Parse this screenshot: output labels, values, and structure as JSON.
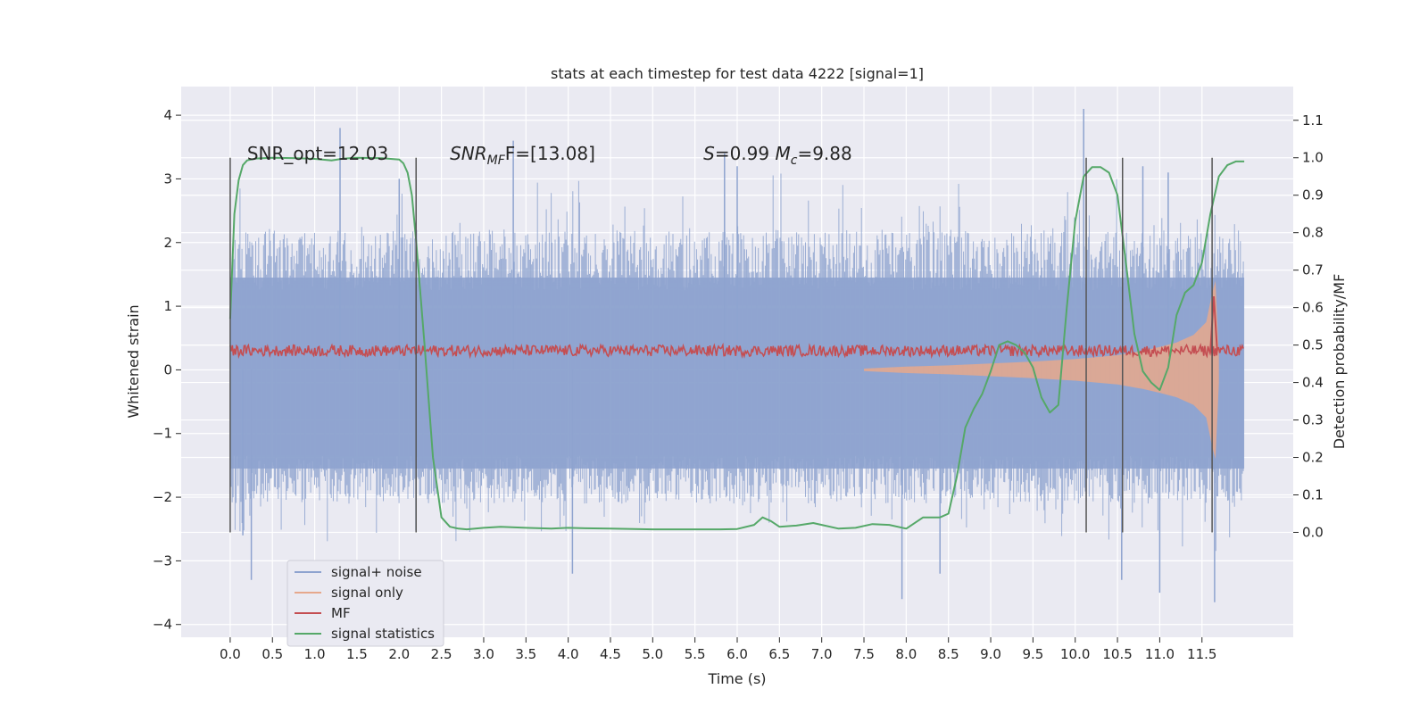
{
  "chart_data": {
    "type": "line",
    "title": "stats at each timestep for test data 4222 [signal=1]",
    "xlabel": "Time (s)",
    "ylabel": "Whitened strain",
    "ylabel_right": "Detection probability/MF",
    "xlim": [
      -0.58,
      12.58
    ],
    "ylim": [
      -4.2,
      4.45
    ],
    "ylim_right": [
      -0.28,
      1.19
    ],
    "x_ticks": [
      0.0,
      0.5,
      1.0,
      1.5,
      2.0,
      2.5,
      3.0,
      3.5,
      4.0,
      4.5,
      5.0,
      5.5,
      6.0,
      6.5,
      7.0,
      7.5,
      8.0,
      8.5,
      9.0,
      9.5,
      10.0,
      10.5,
      11.0,
      11.5
    ],
    "x_tick_labels": [
      "0.0",
      "0.5",
      "1.0",
      "1.5",
      "2.0",
      "2.5",
      "3.0",
      "3.5",
      "4.0",
      "4.5",
      "5.0",
      "5.5",
      "6.0",
      "6.5",
      "7.0",
      "7.5",
      "8.0",
      "8.5",
      "9.0",
      "9.5",
      "10.0",
      "10.5",
      "11.0",
      "11.5"
    ],
    "y_ticks": [
      -4,
      -3,
      -2,
      -1,
      0,
      1,
      2,
      3,
      4
    ],
    "y_tick_labels": [
      "−4",
      "−3",
      "−2",
      "−1",
      "0",
      "1",
      "2",
      "3",
      "4"
    ],
    "y_ticks_right": [
      0.0,
      0.1,
      0.2,
      0.3,
      0.4,
      0.5,
      0.6,
      0.7,
      0.8,
      0.9,
      1.0,
      1.1
    ],
    "y_tick_labels_right": [
      "0.0",
      "0.1",
      "0.2",
      "0.3",
      "0.4",
      "0.5",
      "0.6",
      "0.7",
      "0.8",
      "0.9",
      "1.0",
      "1.1"
    ],
    "grid": true,
    "legend_position": "lower-left",
    "annotations": [
      {
        "id": "snr-opt",
        "text": "SNR_opt=12.03",
        "x": 0.2,
        "y": 3.3
      },
      {
        "id": "snr-mf",
        "text": "SNR",
        "sub": "MF",
        "suffix": "F=[13.08]",
        "x": 2.6,
        "y": 3.3
      },
      {
        "id": "stats",
        "text": "S",
        "suffix": "=0.99",
        "text2": "M",
        "sub2": "c",
        "suffix2": "=9.88",
        "x": 5.6,
        "y": 3.3
      }
    ],
    "vlines": [
      0.0,
      2.2,
      10.13,
      10.56,
      11.62
    ],
    "vline_range": [
      -0.0,
      1.0
    ],
    "series": [
      {
        "name": "signal+ noise",
        "color": "#8ea3cf",
        "axis": "left",
        "x_range": [
          0.0,
          12.0
        ],
        "band_min": -2.1,
        "band_max": 2.2,
        "extreme_spikes": [
          [
            0.15,
            -2.6
          ],
          [
            0.25,
            -3.3
          ],
          [
            1.3,
            3.8
          ],
          [
            4.05,
            -3.2
          ],
          [
            6.0,
            3.2
          ],
          [
            7.95,
            -3.6
          ],
          [
            8.4,
            -3.2
          ],
          [
            10.1,
            4.1
          ],
          [
            10.55,
            -3.3
          ],
          [
            11.0,
            -3.5
          ],
          [
            11.65,
            -3.65
          ],
          [
            11.1,
            3.1
          ],
          [
            2.0,
            3.0
          ],
          [
            3.35,
            3.6
          ],
          [
            5.85,
            3.4
          ],
          [
            10.8,
            3.2
          ]
        ]
      },
      {
        "name": "signal only",
        "color": "#e6a88c",
        "axis": "left",
        "envelope": [
          [
            7.5,
            0.02
          ],
          [
            8.0,
            0.05
          ],
          [
            8.5,
            0.07
          ],
          [
            9.0,
            0.1
          ],
          [
            9.5,
            0.13
          ],
          [
            10.0,
            0.17
          ],
          [
            10.5,
            0.23
          ],
          [
            10.8,
            0.3
          ],
          [
            11.0,
            0.36
          ],
          [
            11.2,
            0.43
          ],
          [
            11.4,
            0.55
          ],
          [
            11.55,
            0.75
          ],
          [
            11.62,
            1.2
          ],
          [
            11.66,
            1.4
          ],
          [
            11.7,
            0.2
          ]
        ]
      },
      {
        "name": "MF",
        "color": "#c44e52",
        "axis": "right",
        "x_range": [
          0.0,
          12.0
        ],
        "base": 0.485,
        "spread": 0.015,
        "peak": [
          11.64,
          0.63
        ]
      },
      {
        "name": "signal statistics",
        "color": "#55a868",
        "axis": "right",
        "x": [
          0.0,
          0.05,
          0.1,
          0.15,
          0.2,
          0.3,
          0.5,
          0.8,
          1.0,
          1.2,
          1.35,
          1.5,
          1.8,
          2.0,
          2.05,
          2.1,
          2.15,
          2.2,
          2.3,
          2.4,
          2.5,
          2.6,
          2.7,
          2.8,
          3.0,
          3.2,
          3.5,
          3.8,
          4.0,
          4.2,
          4.5,
          5.0,
          5.5,
          5.8,
          6.0,
          6.2,
          6.3,
          6.4,
          6.5,
          6.7,
          6.9,
          7.0,
          7.2,
          7.4,
          7.6,
          7.8,
          8.0,
          8.2,
          8.4,
          8.5,
          8.6,
          8.7,
          8.8,
          8.9,
          9.0,
          9.1,
          9.2,
          9.3,
          9.4,
          9.5,
          9.6,
          9.7,
          9.8,
          9.9,
          10.0,
          10.1,
          10.2,
          10.3,
          10.4,
          10.5,
          10.6,
          10.7,
          10.8,
          10.9,
          11.0,
          11.1,
          11.2,
          11.3,
          11.4,
          11.5,
          11.6,
          11.7,
          11.8,
          11.9,
          12.0
        ],
        "y": [
          0.57,
          0.85,
          0.94,
          0.98,
          0.993,
          0.998,
          1.0,
          0.999,
          0.997,
          0.993,
          0.998,
          1.0,
          0.999,
          0.995,
          0.985,
          0.96,
          0.9,
          0.78,
          0.5,
          0.2,
          0.04,
          0.015,
          0.01,
          0.008,
          0.012,
          0.015,
          0.012,
          0.01,
          0.012,
          0.011,
          0.01,
          0.008,
          0.008,
          0.008,
          0.009,
          0.02,
          0.04,
          0.03,
          0.015,
          0.018,
          0.025,
          0.02,
          0.01,
          0.012,
          0.022,
          0.02,
          0.01,
          0.04,
          0.04,
          0.05,
          0.15,
          0.28,
          0.33,
          0.37,
          0.43,
          0.5,
          0.51,
          0.5,
          0.48,
          0.44,
          0.36,
          0.32,
          0.34,
          0.6,
          0.83,
          0.95,
          0.975,
          0.975,
          0.96,
          0.9,
          0.72,
          0.53,
          0.43,
          0.4,
          0.38,
          0.44,
          0.58,
          0.64,
          0.66,
          0.72,
          0.85,
          0.95,
          0.98,
          0.99,
          0.99
        ]
      }
    ]
  }
}
